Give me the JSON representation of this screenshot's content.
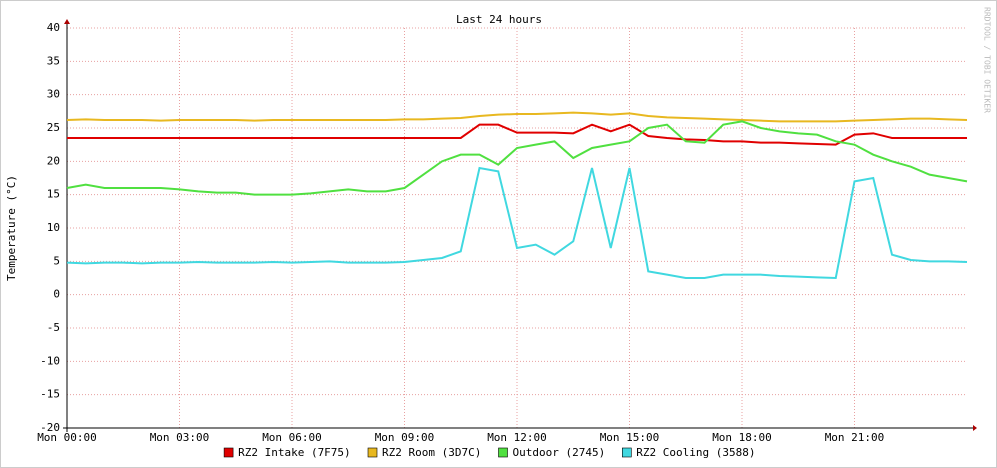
{
  "chart_data": {
    "type": "line",
    "title": "Last 24 hours",
    "ylabel": "Temperature (°C)",
    "watermark": "RRDTOOL / TOBI OETIKER",
    "x": [
      0,
      0.5,
      1,
      1.5,
      2,
      2.5,
      3,
      3.5,
      4,
      4.5,
      5,
      5.5,
      6,
      6.5,
      7,
      7.5,
      8,
      8.5,
      9,
      9.5,
      10,
      10.5,
      11,
      11.5,
      12,
      12.5,
      13,
      13.5,
      14,
      14.5,
      15,
      15.5,
      16,
      16.5,
      17,
      17.5,
      18,
      18.5,
      19,
      19.5,
      20,
      20.5,
      21,
      21.5,
      22,
      22.5,
      23,
      23.5,
      24
    ],
    "xlim": [
      0,
      24
    ],
    "xticks": [
      {
        "value": 0,
        "label": "Mon 00:00"
      },
      {
        "value": 3,
        "label": "Mon 03:00"
      },
      {
        "value": 6,
        "label": "Mon 06:00"
      },
      {
        "value": 9,
        "label": "Mon 09:00"
      },
      {
        "value": 12,
        "label": "Mon 12:00"
      },
      {
        "value": 15,
        "label": "Mon 15:00"
      },
      {
        "value": 18,
        "label": "Mon 18:00"
      },
      {
        "value": 21,
        "label": "Mon 21:00"
      }
    ],
    "ylim": [
      -20,
      40
    ],
    "yticks": [
      -20,
      -15,
      -10,
      -5,
      0,
      5,
      10,
      15,
      20,
      25,
      30,
      35,
      40
    ],
    "grid": true,
    "series": [
      {
        "name": "RZ2 Intake (7F75)",
        "color": "#e00000",
        "values": [
          23.5,
          23.5,
          23.5,
          23.5,
          23.5,
          23.5,
          23.5,
          23.5,
          23.5,
          23.5,
          23.5,
          23.5,
          23.5,
          23.5,
          23.5,
          23.5,
          23.5,
          23.5,
          23.5,
          23.5,
          23.5,
          23.5,
          25.5,
          25.5,
          24.3,
          24.3,
          24.3,
          24.2,
          25.5,
          24.5,
          25.5,
          23.8,
          23.5,
          23.3,
          23.2,
          23,
          23,
          22.8,
          22.8,
          22.7,
          22.6,
          22.5,
          24,
          24.2,
          23.5,
          23.5,
          23.5,
          23.5,
          23.5
        ]
      },
      {
        "name": "RZ2 Room (3D7C)",
        "color": "#e8b820",
        "values": [
          26.2,
          26.3,
          26.2,
          26.2,
          26.2,
          26.1,
          26.2,
          26.2,
          26.2,
          26.2,
          26.1,
          26.2,
          26.2,
          26.2,
          26.2,
          26.2,
          26.2,
          26.2,
          26.3,
          26.3,
          26.4,
          26.5,
          26.8,
          27,
          27.1,
          27.1,
          27.2,
          27.3,
          27.2,
          27,
          27.2,
          26.8,
          26.6,
          26.5,
          26.4,
          26.3,
          26.2,
          26.1,
          26,
          26,
          26,
          26,
          26.1,
          26.2,
          26.3,
          26.4,
          26.4,
          26.3,
          26.2
        ]
      },
      {
        "name": "Outdoor (2745)",
        "color": "#50e040",
        "values": [
          16,
          16.5,
          16,
          16,
          16,
          16,
          15.8,
          15.5,
          15.3,
          15.3,
          15,
          15,
          15,
          15.2,
          15.5,
          15.8,
          15.5,
          15.5,
          16,
          18,
          20,
          21,
          21,
          19.5,
          22,
          22.5,
          23,
          20.5,
          22,
          22.5,
          23,
          25,
          25.5,
          23,
          22.8,
          25.5,
          26,
          25,
          24.5,
          24.2,
          24,
          23,
          22.5,
          21,
          20,
          19.2,
          18,
          17.5,
          17
        ]
      },
      {
        "name": "RZ2 Cooling (3588)",
        "color": "#40d8e0",
        "values": [
          4.8,
          4.7,
          4.8,
          4.8,
          4.7,
          4.8,
          4.8,
          4.9,
          4.8,
          4.8,
          4.8,
          4.9,
          4.8,
          4.9,
          5,
          4.8,
          4.8,
          4.8,
          4.9,
          5.2,
          5.5,
          6.5,
          19,
          18.5,
          7,
          7.5,
          6,
          8,
          19,
          7,
          19,
          3.5,
          3,
          2.5,
          2.5,
          3,
          3,
          3,
          2.8,
          2.7,
          2.6,
          2.5,
          17,
          17.5,
          6,
          5.2,
          5,
          5,
          4.9
        ]
      }
    ]
  }
}
